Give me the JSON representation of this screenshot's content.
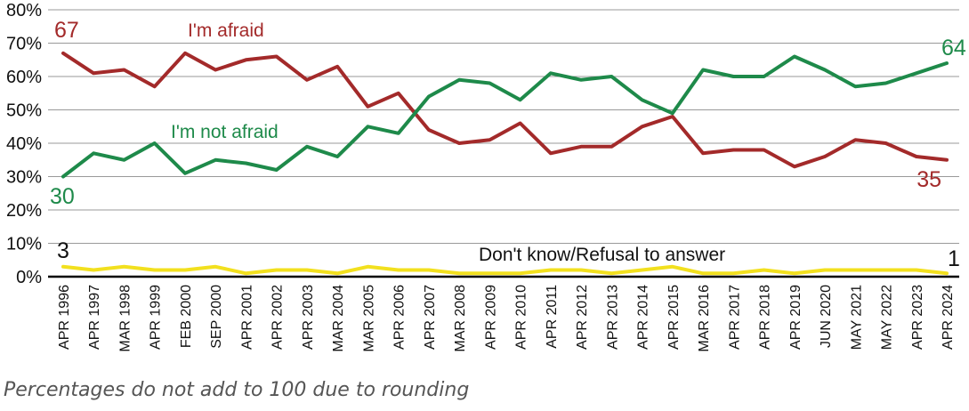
{
  "chart_data": {
    "type": "line",
    "categories": [
      "APR 1996",
      "APR 1997",
      "MAR 1998",
      "APR 1999",
      "FEB 2000",
      "SEP 2000",
      "APR 2001",
      "APR 2002",
      "APR 2003",
      "MAR 2004",
      "MAR 2005",
      "APR 2006",
      "APR 2007",
      "MAR 2008",
      "APR 2009",
      "APR 2010",
      "APR 2011",
      "APR 2012",
      "APR 2013",
      "APR 2014",
      "APR 2015",
      "MAR 2016",
      "APR 2017",
      "APR 2018",
      "APR 2019",
      "JUN 2020",
      "MAY 2021",
      "MAY 2022",
      "APR 2023",
      "APR 2024"
    ],
    "ylim": [
      0,
      80
    ],
    "yticks": [
      "0%",
      "10%",
      "20%",
      "30%",
      "40%",
      "50%",
      "60%",
      "70%",
      "80%"
    ],
    "grid": true,
    "series": [
      {
        "name": "I'm afraid",
        "color": "#a32a2a",
        "values": [
          67,
          61,
          62,
          57,
          67,
          62,
          65,
          66,
          59,
          63,
          51,
          55,
          44,
          40,
          41,
          46,
          37,
          39,
          39,
          45,
          48,
          37,
          38,
          38,
          33,
          36,
          41,
          40,
          36,
          35
        ],
        "start_label": "67",
        "end_label": "35"
      },
      {
        "name": "I'm not afraid",
        "color": "#1e8a4a",
        "values": [
          30,
          37,
          35,
          40,
          31,
          35,
          34,
          32,
          39,
          36,
          45,
          43,
          54,
          59,
          58,
          53,
          61,
          59,
          60,
          53,
          49,
          62,
          60,
          60,
          66,
          62,
          57,
          58,
          61,
          64
        ],
        "start_label": "30",
        "end_label": "64"
      },
      {
        "name": "Don't know/Refusal to answer",
        "color": "#f2e01e",
        "values": [
          3,
          2,
          3,
          2,
          2,
          3,
          1,
          2,
          2,
          1,
          3,
          2,
          2,
          1,
          1,
          1,
          2,
          2,
          1,
          2,
          3,
          1,
          1,
          2,
          1,
          2,
          2,
          2,
          2,
          1
        ],
        "start_label": "3",
        "end_label": "1"
      }
    ]
  },
  "note": "Percentages do not add to 100 due to rounding"
}
